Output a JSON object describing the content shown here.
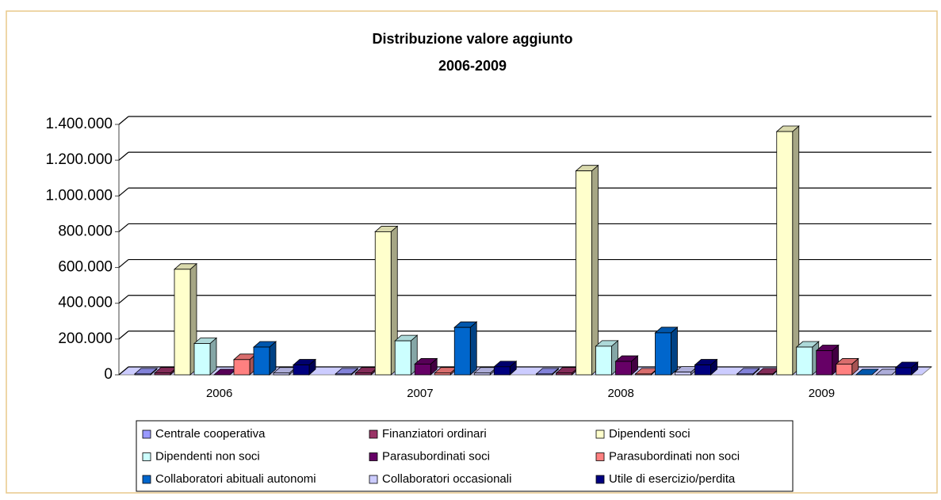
{
  "chart_data": {
    "type": "bar3d",
    "title": "Distribuzione valore aggiunto",
    "subtitle": "2006-2009",
    "categories": [
      "2006",
      "2007",
      "2008",
      "2009"
    ],
    "series": [
      {
        "name": "Centrale cooperativa",
        "color": "#9999ff",
        "values": [
          5000,
          5000,
          5000,
          5000
        ]
      },
      {
        "name": "Finanziatori ordinari",
        "color": "#993366",
        "values": [
          10000,
          10000,
          10000,
          5000
        ]
      },
      {
        "name": "Dipendenti soci",
        "color": "#ffffcc",
        "values": [
          590000,
          800000,
          1140000,
          1360000
        ]
      },
      {
        "name": "Dipendenti non soci",
        "color": "#ccffff",
        "values": [
          175000,
          190000,
          160000,
          155000
        ]
      },
      {
        "name": "Parasubordinati soci",
        "color": "#660066",
        "values": [
          0,
          60000,
          75000,
          135000
        ]
      },
      {
        "name": "Parasubordinati non soci",
        "color": "#ff8080",
        "values": [
          85000,
          10000,
          5000,
          60000
        ]
      },
      {
        "name": "Collaboratori abituali autonomi",
        "color": "#0066cc",
        "values": [
          155000,
          265000,
          235000,
          0
        ]
      },
      {
        "name": "Collaboratori occasionali",
        "color": "#ccccff",
        "values": [
          10000,
          10000,
          15000,
          0
        ]
      },
      {
        "name": "Utile di esercizio/perdita",
        "color": "#000080",
        "values": [
          55000,
          45000,
          55000,
          40000
        ]
      }
    ],
    "ylim": [
      0,
      1400000
    ],
    "yticks": [
      0,
      {
        "value": 200000,
        "label": "200.000"
      },
      {
        "value": 400000,
        "label": "400.000"
      },
      {
        "value": 600000,
        "label": "600.000"
      },
      {
        "value": 800000,
        "label": "800.000"
      },
      {
        "value": 1000000,
        "label": "1.000.000"
      },
      {
        "value": 1200000,
        "label": "1.200.000"
      },
      {
        "value": 1400000,
        "label": "1.400.000"
      }
    ],
    "grid": true,
    "legend": "bottom"
  }
}
